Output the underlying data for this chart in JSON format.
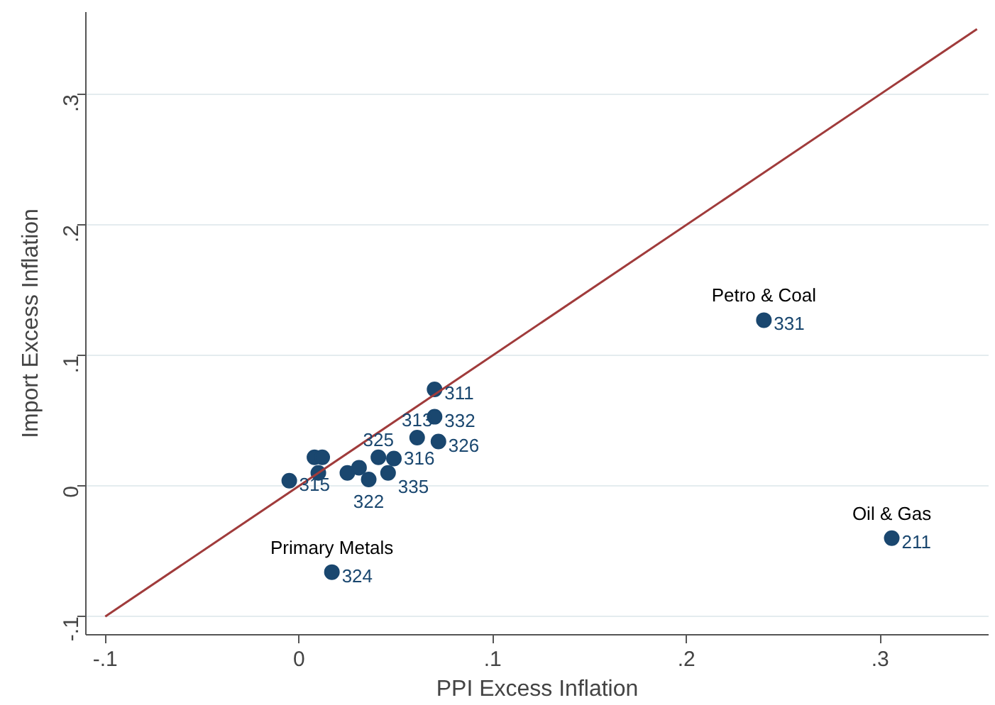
{
  "chart_data": {
    "type": "scatter",
    "xlabel": "PPI Excess Inflation",
    "ylabel": "Import Excess Inflation",
    "xlim": [
      -0.11,
      0.356
    ],
    "ylim": [
      -0.114,
      0.363
    ],
    "xticks": [
      {
        "value": -0.1,
        "label": "-.1"
      },
      0,
      {
        "value": 0.1,
        "label": ".1"
      },
      {
        "value": 0.2,
        "label": ".2"
      },
      {
        "value": 0.3,
        "label": ".3"
      }
    ],
    "yticks": [
      {
        "value": -0.1,
        "label": "-.1"
      },
      0,
      {
        "value": 0.1,
        "label": ".1"
      },
      {
        "value": 0.2,
        "label": ".2"
      },
      {
        "value": 0.3,
        "label": ".3"
      }
    ],
    "grid": "y",
    "series": [
      {
        "color": "#1a476f",
        "marker": "circle",
        "x": [
          0.24,
          0.306,
          0.017,
          0.07,
          0.07,
          0.061,
          0.072,
          -0.005,
          0.008,
          0.012,
          0.01,
          0.025,
          0.036,
          0.041,
          0.049,
          0.046,
          0.031
        ],
        "values": [
          0.127,
          -0.04,
          -0.066,
          0.074,
          0.053,
          0.037,
          0.034,
          0.004,
          0.022,
          0.022,
          0.01,
          0.01,
          0.005,
          0.022,
          0.021,
          0.01,
          0.014
        ]
      },
      {
        "type": "line",
        "color": "#a03b3b",
        "x": [
          -0.1,
          0.35
        ],
        "values": [
          -0.1,
          0.35
        ]
      }
    ],
    "annotations": [
      {
        "text": "Petro & Coal",
        "x": 0.24,
        "y": 0.127
      },
      {
        "text": "Oil & Gas",
        "x": 0.306,
        "y": -0.04
      },
      {
        "text": "Primary Metals",
        "x": 0.017,
        "y": -0.066
      },
      {
        "text": "331",
        "x": 0.24,
        "y": 0.127
      },
      {
        "text": "211",
        "x": 0.306,
        "y": -0.04
      },
      {
        "text": "324",
        "x": 0.017,
        "y": -0.066
      },
      {
        "text": "311",
        "x": 0.07,
        "y": 0.074
      },
      {
        "text": "332",
        "x": 0.07,
        "y": 0.053
      },
      {
        "text": "313",
        "x": 0.061,
        "y": 0.037
      },
      {
        "text": "326",
        "x": 0.072,
        "y": 0.034
      },
      {
        "text": "315",
        "x": -0.005,
        "y": 0.004
      },
      {
        "text": "322",
        "x": 0.036,
        "y": 0.005
      },
      {
        "text": "325",
        "x": 0.041,
        "y": 0.022
      },
      {
        "text": "316",
        "x": 0.049,
        "y": 0.021
      },
      {
        "text": "335",
        "x": 0.046,
        "y": 0.01
      }
    ]
  }
}
